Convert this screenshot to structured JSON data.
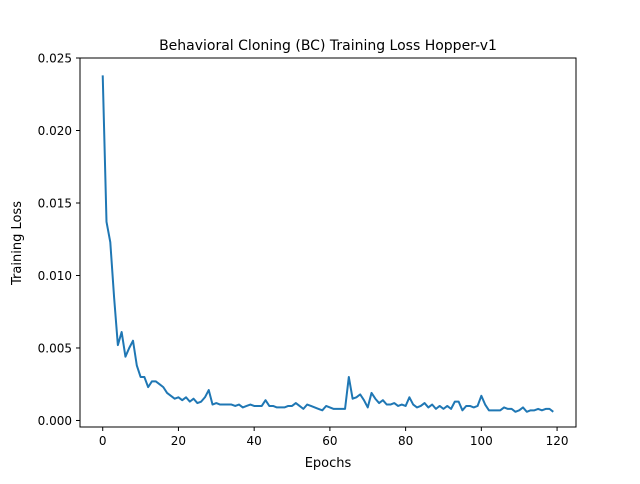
{
  "chart_data": {
    "type": "line",
    "title": "Behavioral Cloning (BC) Training Loss Hopper-v1",
    "xlabel": "Epochs",
    "ylabel": "Training Loss",
    "xlim": [
      -6,
      125
    ],
    "ylim": [
      -0.00045,
      0.025
    ],
    "xticks": [
      0,
      20,
      40,
      60,
      80,
      100,
      120
    ],
    "xtick_labels": [
      "0",
      "20",
      "40",
      "60",
      "80",
      "100",
      "120"
    ],
    "yticks": [
      0,
      0.005,
      0.01,
      0.015,
      0.02,
      0.025
    ],
    "ytick_labels": [
      "0.000",
      "0.005",
      "0.010",
      "0.015",
      "0.020",
      "0.025"
    ],
    "grid": false,
    "legend": "none",
    "series": [
      {
        "color": "#1f77b4",
        "x": [
          0,
          1,
          2,
          3,
          4,
          5,
          6,
          7,
          8,
          9,
          10,
          11,
          12,
          13,
          14,
          15,
          16,
          17,
          18,
          19,
          20,
          21,
          22,
          23,
          24,
          25,
          26,
          27,
          28,
          29,
          30,
          31,
          32,
          33,
          34,
          35,
          36,
          37,
          38,
          39,
          40,
          41,
          42,
          43,
          44,
          45,
          46,
          47,
          48,
          49,
          50,
          51,
          52,
          53,
          54,
          55,
          56,
          57,
          58,
          59,
          60,
          61,
          62,
          63,
          64,
          65,
          66,
          67,
          68,
          69,
          70,
          71,
          72,
          73,
          74,
          75,
          76,
          77,
          78,
          79,
          80,
          81,
          82,
          83,
          84,
          85,
          86,
          87,
          88,
          89,
          90,
          91,
          92,
          93,
          94,
          95,
          96,
          97,
          98,
          99,
          100,
          101,
          102,
          103,
          104,
          105,
          106,
          107,
          108,
          109,
          110,
          111,
          112,
          113,
          114,
          115,
          116,
          117,
          118,
          119
        ],
        "y": [
          0.0238,
          0.0137,
          0.0123,
          0.0085,
          0.0052,
          0.0061,
          0.0044,
          0.005,
          0.0055,
          0.0038,
          0.003,
          0.003,
          0.0023,
          0.0027,
          0.0027,
          0.0025,
          0.0023,
          0.0019,
          0.0017,
          0.0015,
          0.0016,
          0.0014,
          0.0016,
          0.0013,
          0.0015,
          0.0012,
          0.0013,
          0.0016,
          0.0021,
          0.0011,
          0.0012,
          0.0011,
          0.0011,
          0.0011,
          0.0011,
          0.001,
          0.0011,
          0.0009,
          0.001,
          0.0011,
          0.001,
          0.001,
          0.001,
          0.0014,
          0.001,
          0.001,
          0.0009,
          0.0009,
          0.0009,
          0.001,
          0.001,
          0.0012,
          0.001,
          0.0008,
          0.0011,
          0.001,
          0.0009,
          0.0008,
          0.0007,
          0.001,
          0.0009,
          0.0008,
          0.0008,
          0.0008,
          0.0008,
          0.003,
          0.0015,
          0.0016,
          0.0018,
          0.0014,
          0.0009,
          0.0019,
          0.0015,
          0.0012,
          0.0014,
          0.0011,
          0.0011,
          0.0012,
          0.001,
          0.0011,
          0.001,
          0.0016,
          0.0011,
          0.0009,
          0.001,
          0.0012,
          0.0009,
          0.0011,
          0.0008,
          0.001,
          0.0008,
          0.001,
          0.0008,
          0.0013,
          0.0013,
          0.0007,
          0.001,
          0.001,
          0.0009,
          0.001,
          0.0017,
          0.0011,
          0.0007,
          0.0007,
          0.0007,
          0.0007,
          0.0009,
          0.0008,
          0.0008,
          0.0006,
          0.0007,
          0.0009,
          0.0006,
          0.0007,
          0.0007,
          0.0008,
          0.0007,
          0.0008,
          0.0008,
          0.0006
        ]
      }
    ]
  }
}
